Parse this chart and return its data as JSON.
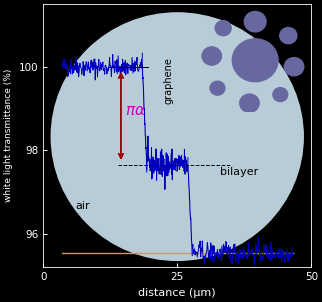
{
  "xlabel": "distance (μm)",
  "ylabel": "white light transmittance (%)",
  "xlim": [
    0,
    50
  ],
  "ylim": [
    95.2,
    101.5
  ],
  "yticks": [
    96,
    98,
    100
  ],
  "xticks": [
    0,
    25,
    50
  ],
  "bg_circle_color": "#b8ccd8",
  "bg_outer_color": "#000000",
  "line_color": "#0000bb",
  "arrow_color": "#990000",
  "pi_alpha_color": "#cc00bb",
  "annotation_color": "#000000",
  "yellow_line_color": "#ccaa00",
  "yellow_line_y": 95.55,
  "graphene_level": 100.0,
  "graphene_lower": 97.65,
  "bilayer_level": 95.55,
  "transition1_x": 18.5,
  "transition2_x": 27.0,
  "inset_bg_color": "#e8d8a0",
  "inset_circle_color": "#6868a0",
  "fig_width": 3.22,
  "fig_height": 3.02,
  "dpi": 100
}
